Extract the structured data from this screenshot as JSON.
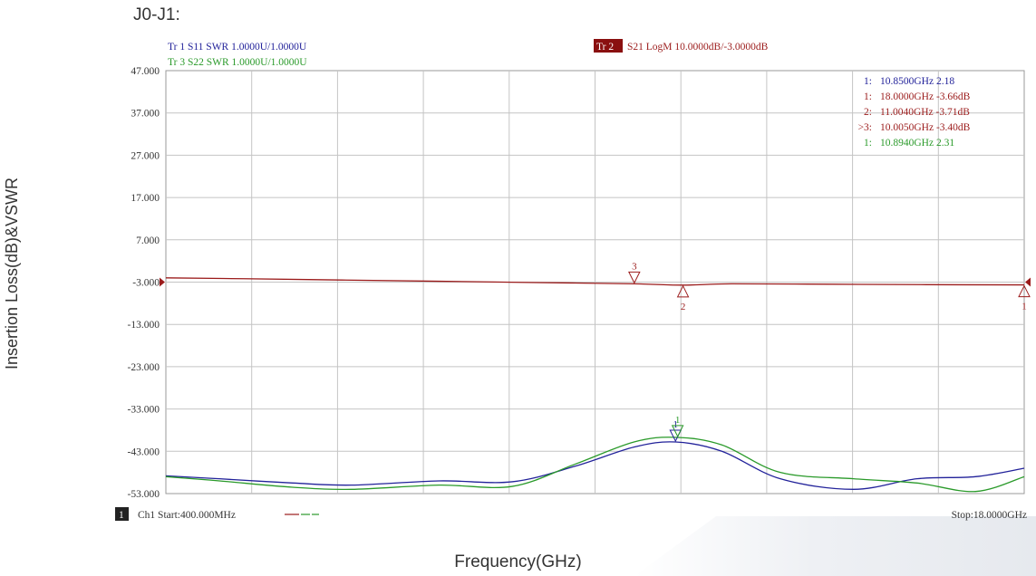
{
  "title": "J0-J1:",
  "ylabel": "Insertion Loss(dB)&VSWR",
  "xlabel": "Frequency(GHz)",
  "header": {
    "tr1": "Tr 1  S11 SWR 1.0000U/1.0000U",
    "tr3": "Tr 3  S22 SWR 1.0000U/1.0000U",
    "tr2_badge": "Tr 2",
    "tr2": "S21 LogM 10.0000dB/-3.0000dB"
  },
  "footer": {
    "channel_badge": "1",
    "start": "Ch1  Start:400.000MHz",
    "stop": "Stop:18.0000GHz"
  },
  "markers": [
    {
      "label": "1:",
      "value": "10.8500GHz 2.18",
      "color": "#22229a"
    },
    {
      "label": "1:",
      "value": "18.0000GHz -3.66dB",
      "color": "#9b1b1b"
    },
    {
      "label": "2:",
      "value": "11.0040GHz -3.71dB",
      "color": "#9b1b1b"
    },
    {
      "label": ">3:",
      "value": "10.0050GHz -3.40dB",
      "color": "#9b1b1b"
    },
    {
      "label": "1:",
      "value": "10.8940GHz 2.31",
      "color": "#2a9a2a"
    }
  ],
  "chart_data": {
    "type": "line",
    "ylim": [
      -53,
      47
    ],
    "xlim": [
      0.4,
      18.0
    ],
    "grid": true,
    "y_ticks": [
      "47.000",
      "37.000",
      "27.000",
      "17.000",
      "7.000",
      "-3.000",
      "-13.000",
      "-23.000",
      "-33.000",
      "-43.000",
      "-53.000"
    ],
    "series": [
      {
        "name": "S21",
        "color": "#9b1b1b",
        "x": [
          0.4,
          2.0,
          4.0,
          6.0,
          8.0,
          10.0,
          11.0,
          12.0,
          14.0,
          16.0,
          18.0
        ],
        "values": [
          -2.0,
          -2.2,
          -2.5,
          -2.8,
          -3.1,
          -3.4,
          -3.71,
          -3.4,
          -3.5,
          -3.6,
          -3.66
        ]
      },
      {
        "name": "S11",
        "color": "#22229a",
        "x": [
          0.4,
          1.5,
          3.0,
          4.2,
          6.0,
          7.5,
          8.8,
          10.0,
          10.85,
          11.8,
          13.0,
          14.5,
          15.8,
          17.0,
          18.0
        ],
        "values": [
          -48.8,
          -49.5,
          -50.5,
          -51.0,
          -50.0,
          -50.2,
          -46.5,
          -42.0,
          -40.8,
          -43.0,
          -49.5,
          -52.0,
          -49.5,
          -49.0,
          -47.0
        ]
      },
      {
        "name": "S22",
        "color": "#2a9a2a",
        "x": [
          0.4,
          1.5,
          3.0,
          4.2,
          6.0,
          7.5,
          8.8,
          10.0,
          10.85,
          11.8,
          13.0,
          14.5,
          15.8,
          17.0,
          18.0
        ],
        "values": [
          -49.0,
          -50.0,
          -51.5,
          -52.0,
          -51.0,
          -51.3,
          -46.0,
          -40.8,
          -39.7,
          -41.5,
          -48.0,
          -49.5,
          -50.5,
          -52.5,
          -49.0
        ]
      }
    ],
    "trace_markers": [
      {
        "series": "S21",
        "label": "3",
        "x": 10.005,
        "y": -3.4,
        "dir": "down",
        "pos": "above"
      },
      {
        "series": "S21",
        "label": "2",
        "x": 11.004,
        "y": -3.71,
        "dir": "up",
        "pos": "below"
      },
      {
        "series": "S21",
        "label": "1",
        "x": 18.0,
        "y": -3.66,
        "dir": "up",
        "pos": "below"
      },
      {
        "series": "S11",
        "label": "1",
        "x": 10.85,
        "y": -40.8,
        "dir": "down",
        "pos": "above"
      },
      {
        "series": "S22",
        "label": "1",
        "x": 10.894,
        "y": -39.7,
        "dir": "down",
        "pos": "above"
      }
    ]
  }
}
